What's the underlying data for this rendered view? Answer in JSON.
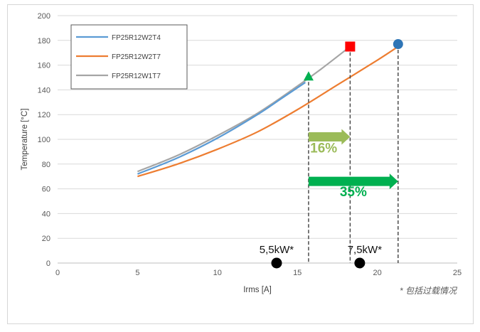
{
  "chart_data": {
    "type": "line",
    "title": "",
    "xlabel": "Irms [A]",
    "ylabel": "Temperature [°C]",
    "xlim": [
      0,
      25
    ],
    "ylim": [
      0,
      200
    ],
    "xticks": [
      0,
      5,
      10,
      15,
      20,
      25
    ],
    "yticks": [
      0,
      20,
      40,
      60,
      80,
      100,
      120,
      140,
      160,
      180,
      200
    ],
    "grid": "horizontal",
    "legend_position": "top-left",
    "series": [
      {
        "name": "FP25R12W2T4",
        "color": "#5B9BD5",
        "x": [
          5,
          7.5,
          10,
          12.5,
          14,
          15.5
        ],
        "y": [
          72,
          85,
          101,
          120,
          133,
          146
        ]
      },
      {
        "name": "FP25R12W2T7",
        "color": "#ED7D31",
        "x": [
          5,
          7.5,
          10,
          12.5,
          15,
          17.5,
          20,
          21.3
        ],
        "y": [
          70,
          80,
          92,
          106,
          124,
          144,
          164,
          175
        ]
      },
      {
        "name": "FP25R12W1T7",
        "color": "#A5A5A5",
        "x": [
          5,
          7.5,
          10,
          12.5,
          15,
          16.5,
          18.2
        ],
        "y": [
          74,
          87,
          103,
          121,
          143,
          157,
          174
        ]
      }
    ],
    "end_markers": [
      {
        "series": "FP25R12W2T4",
        "shape": "triangle",
        "color": "#00B050",
        "x": 15.7,
        "y": 151
      },
      {
        "series": "FP25R12W1T7",
        "shape": "square",
        "color": "#FF0000",
        "x": 18.3,
        "y": 175
      },
      {
        "series": "FP25R12W2T7",
        "shape": "circle",
        "color": "#2E75B6",
        "x": 21.3,
        "y": 177
      }
    ],
    "reference_lines_x": [
      15.7,
      18.3,
      21.3
    ],
    "annotations": {
      "arrows": [
        {
          "label": "16%",
          "color": "#9BBB59",
          "x_from": 15.7,
          "x_to": 18.3,
          "y": 102
        },
        {
          "label": "35%",
          "color": "#00B050",
          "x_from": 15.7,
          "x_to": 21.3,
          "y": 66
        }
      ],
      "points": [
        {
          "label": "5,5kW*",
          "x": 13.7,
          "y": 0
        },
        {
          "label": "7,5kW*",
          "x": 18.9,
          "y": 0
        }
      ],
      "note": "* 包括过载情况"
    }
  }
}
